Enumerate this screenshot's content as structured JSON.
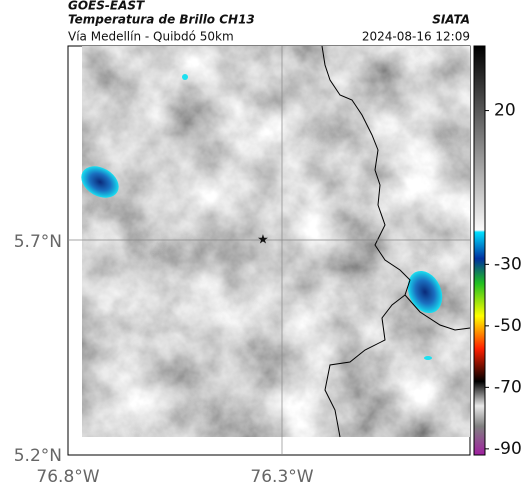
{
  "header": {
    "satellite": "GOES-EAST",
    "title": "Temperatura de Brillo CH13",
    "source": "SIATA",
    "subtitle": "Vía Medellín - Quibdó 50km",
    "timestamp": "2024-08-16 12:09"
  },
  "map": {
    "lat_ticks": [
      "5.7°N",
      "5.2°N"
    ],
    "lon_ticks": [
      "76.8°W",
      "76.3°W"
    ]
  },
  "colorbar": {
    "lim": [
      -92,
      41
    ],
    "ticks": [
      20,
      -30,
      -50,
      -70,
      -90
    ]
  }
}
